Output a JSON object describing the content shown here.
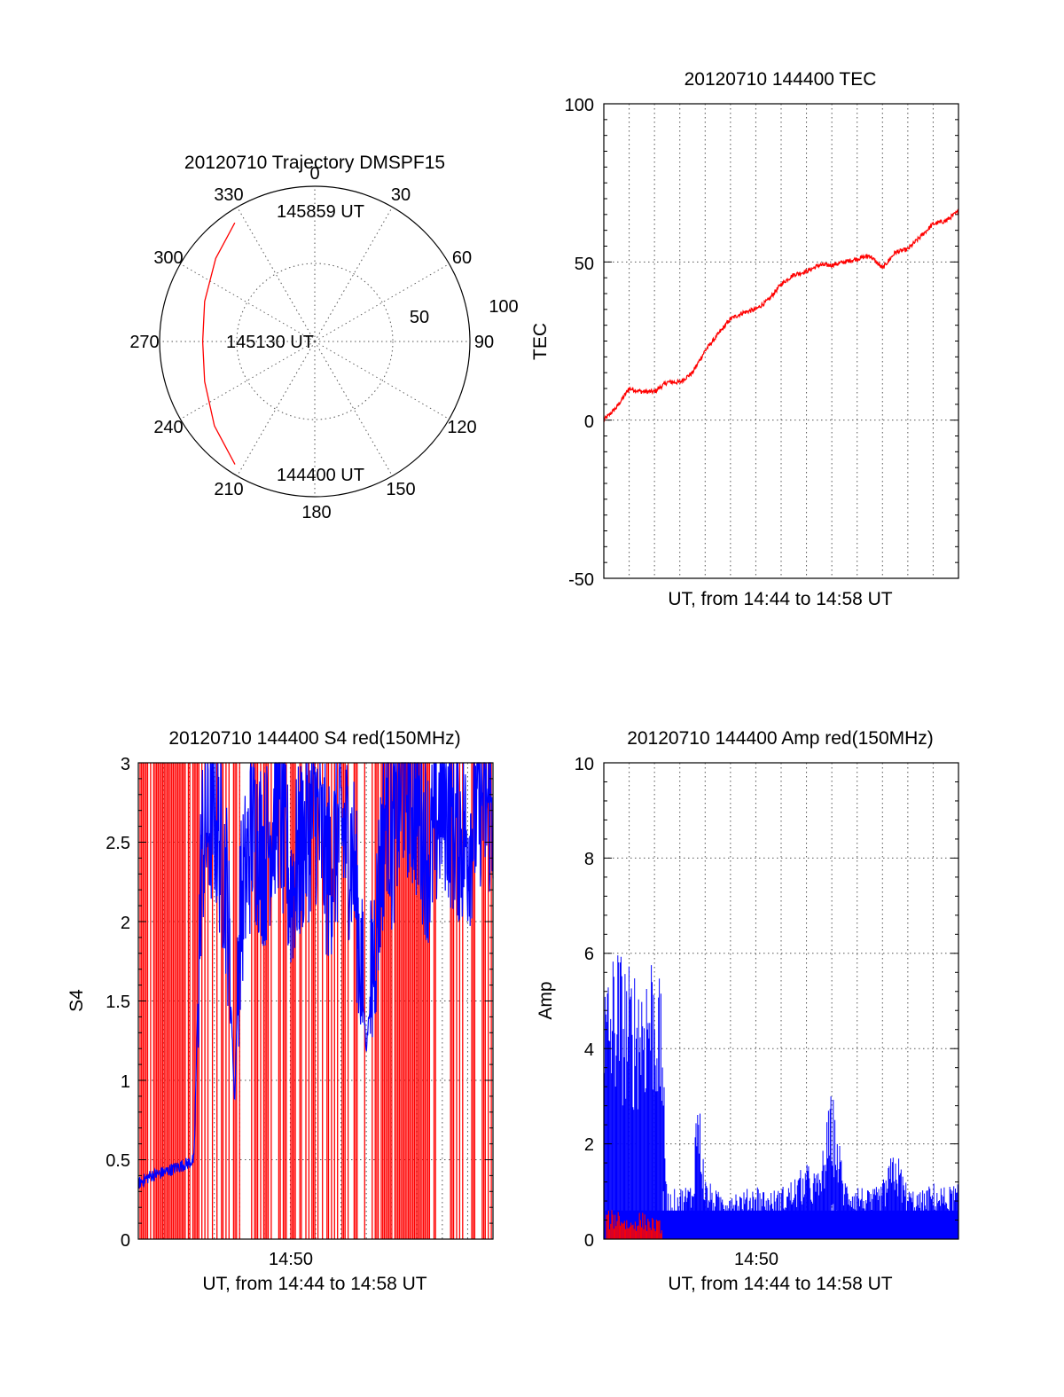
{
  "colors": {
    "red": "#ff0000",
    "blue": "#0000ff",
    "black": "#000000"
  },
  "chart_data": [
    {
      "id": "trajectory",
      "type": "polar",
      "title": "20120710 Trajectory DMSPF15",
      "angle_labels": [
        "0",
        "30",
        "60",
        "90",
        "120",
        "150",
        "180",
        "210",
        "240",
        "270",
        "300",
        "330"
      ],
      "radial_tick_labels": [
        "50",
        "100"
      ],
      "rlim": [
        0,
        90
      ],
      "grid": true,
      "annotations": [
        "145859 UT",
        "145130 UT",
        "144400 UT"
      ],
      "series": [
        {
          "color": "red",
          "points": [
            {
              "az": 213,
              "el": 5
            },
            {
              "az": 230,
              "el": 14
            },
            {
              "az": 250,
              "el": 22
            },
            {
              "az": 270,
              "el": 25
            },
            {
              "az": 290,
              "el": 22
            },
            {
              "az": 310,
              "el": 15
            },
            {
              "az": 326,
              "el": 7
            }
          ]
        }
      ]
    },
    {
      "id": "tec",
      "type": "line",
      "title": "20120710 144400 TEC",
      "xlabel": "UT, from 14:44 to 14:58 UT",
      "ylabel": "TEC",
      "ylim": [
        -50,
        100
      ],
      "y_ticks": [
        "-50",
        "0",
        "50",
        "100"
      ],
      "grid": true,
      "series": [
        {
          "color": "red",
          "x_minutes": [
            0,
            0.5,
            1,
            1.5,
            2,
            2.5,
            3,
            3.5,
            4,
            4.5,
            5,
            5.5,
            6,
            6.5,
            7,
            7.5,
            8,
            8.5,
            9,
            9.5,
            10,
            10.5,
            11,
            11.5,
            12,
            12.5,
            13,
            13.5,
            14
          ],
          "values": [
            0,
            4,
            10,
            9,
            9,
            12,
            12,
            15,
            22,
            27,
            32,
            34,
            35,
            38,
            43,
            46,
            47,
            49,
            49,
            50,
            51,
            52,
            48,
            53,
            54,
            58,
            62,
            63,
            66
          ]
        }
      ]
    },
    {
      "id": "s4",
      "type": "line",
      "title": "20120710 144400 S4 red(150MHz)",
      "xlabel": "UT, from 14:44 to 14:58 UT",
      "ylabel": "S4",
      "ylim": [
        0,
        3
      ],
      "y_ticks": [
        "0",
        "0.5",
        "1",
        "1.5",
        "2",
        "2.5",
        "3"
      ],
      "x_ticks": [
        "14:50"
      ],
      "grid": true,
      "series": [
        {
          "color": "blue",
          "description_values": "approx S4 envelope",
          "x_minutes": [
            0,
            0.5,
            1,
            1.5,
            2,
            2.2,
            2.5,
            3,
            3.5,
            3.8,
            4,
            4.5,
            5,
            5.5,
            6,
            6.5,
            7,
            7.5,
            8,
            8.5,
            9,
            9.5,
            9.8,
            10,
            10.5,
            11,
            11.5,
            12,
            12.5,
            13,
            13.5,
            14
          ],
          "values": [
            0.35,
            0.4,
            0.42,
            0.45,
            0.48,
            0.5,
            2.5,
            2.7,
            2.2,
            0.85,
            2.0,
            2.6,
            2.4,
            2.8,
            2.2,
            2.5,
            2.7,
            2.3,
            2.6,
            2.4,
            1.2,
            2.2,
            2.8,
            2.5,
            2.9,
            2.7,
            2.4,
            2.8,
            2.6,
            2.5,
            2.8,
            2.7
          ]
        },
        {
          "color": "red",
          "note_values": "dense vertical spikes reaching the top of the axis",
          "x_minutes": [],
          "values": []
        }
      ]
    },
    {
      "id": "amp",
      "type": "line",
      "title": "20120710 144400 Amp red(150MHz)",
      "xlabel": "UT, from 14:44 to 14:58 UT",
      "ylabel": "Amp",
      "ylim": [
        0,
        10
      ],
      "y_ticks": [
        "0",
        "2",
        "4",
        "6",
        "8",
        "10"
      ],
      "x_ticks": [
        "14:50"
      ],
      "grid": true,
      "series": [
        {
          "color": "blue",
          "x_minutes": [
            0,
            0.5,
            1,
            1.5,
            2,
            2.3,
            2.5,
            3,
            3.5,
            3.7,
            4,
            4.5,
            5,
            5.5,
            6,
            6.5,
            7,
            7.5,
            8,
            8.5,
            9,
            9.5,
            10,
            10.5,
            11,
            11.5,
            12,
            12.5,
            13,
            13.5,
            14
          ],
          "values": [
            5.5,
            6.4,
            5.8,
            6.0,
            6.4,
            5.0,
            1.0,
            1.1,
            1.2,
            3.5,
            1.3,
            1.0,
            1.1,
            1.0,
            1.2,
            1.0,
            1.1,
            1.3,
            1.6,
            1.4,
            3.2,
            1.3,
            1.2,
            1.0,
            1.2,
            2.0,
            1.1,
            1.0,
            1.2,
            1.1,
            1.2
          ]
        },
        {
          "color": "red",
          "x_minutes": [
            0.2,
            0.6,
            1.0,
            1.4,
            1.8,
            2.2
          ],
          "values": [
            0.6,
            0.7,
            0.4,
            0.6,
            0.5,
            0.4
          ]
        }
      ]
    }
  ]
}
